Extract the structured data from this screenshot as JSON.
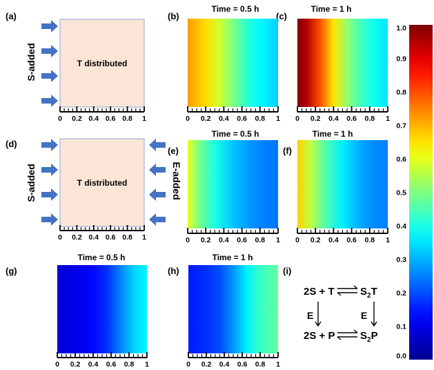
{
  "panel_labels": [
    "(a)",
    "(b)",
    "(c)",
    "(d)",
    "(e)",
    "(f)",
    "(g)",
    "(h)",
    "(i)"
  ],
  "titles": {
    "b": "Time = 0.5 h",
    "c": "Time = 1 h",
    "e": "Time = 0.5 h",
    "f": "Time = 1 h",
    "g": "Time = 0.5 h",
    "h": "Time = 1 h"
  },
  "box_text": "T distributed",
  "side_labels": {
    "s_added": "S-added",
    "e_added": "E-added"
  },
  "x_ticks": [
    "0",
    "0.2",
    "0.4",
    "0.6",
    "0.8",
    "1"
  ],
  "colorbar": {
    "ticks": [
      "0.0",
      "0.1",
      "0.2",
      "0.3",
      "0.4",
      "0.5",
      "0.6",
      "0.7",
      "0.8",
      "0.9",
      "1.0"
    ],
    "colormap": "jet",
    "range": [
      0,
      1
    ]
  },
  "scheme": {
    "top_left": "2S + T",
    "top_right": "S",
    "top_right_sub": "2",
    "top_right_end": "T",
    "bottom_left": "2S + P",
    "bottom_right": "S",
    "bottom_right_sub": "2",
    "bottom_right_end": "P",
    "enzyme": "E"
  },
  "colors": {
    "box_fill": "#fbe5d6",
    "box_stroke": "#8fa8d8",
    "arrow": "#4472c4"
  },
  "profiles": {
    "b": [
      [
        0,
        0.72
      ],
      [
        0.2,
        0.66
      ],
      [
        0.35,
        0.58
      ],
      [
        0.5,
        0.5
      ],
      [
        0.65,
        0.42
      ],
      [
        0.8,
        0.37
      ],
      [
        1,
        0.33
      ]
    ],
    "c": [
      [
        0,
        1.0
      ],
      [
        0.1,
        0.95
      ],
      [
        0.25,
        0.8
      ],
      [
        0.4,
        0.65
      ],
      [
        0.55,
        0.52
      ],
      [
        0.7,
        0.44
      ],
      [
        0.85,
        0.39
      ],
      [
        1,
        0.35
      ]
    ],
    "e": [
      [
        0,
        0.6
      ],
      [
        0.15,
        0.48
      ],
      [
        0.3,
        0.4
      ],
      [
        0.5,
        0.32
      ],
      [
        0.7,
        0.27
      ],
      [
        0.85,
        0.25
      ],
      [
        1,
        0.24
      ]
    ],
    "f": [
      [
        0,
        0.67
      ],
      [
        0.15,
        0.56
      ],
      [
        0.3,
        0.46
      ],
      [
        0.5,
        0.36
      ],
      [
        0.7,
        0.29
      ],
      [
        0.85,
        0.26
      ],
      [
        1,
        0.25
      ]
    ],
    "g": [
      [
        0,
        0.08
      ],
      [
        0.2,
        0.1
      ],
      [
        0.4,
        0.13
      ],
      [
        0.55,
        0.17
      ],
      [
        0.7,
        0.25
      ],
      [
        0.85,
        0.33
      ],
      [
        1,
        0.37
      ]
    ],
    "h": [
      [
        0,
        0.15
      ],
      [
        0.2,
        0.17
      ],
      [
        0.35,
        0.2
      ],
      [
        0.5,
        0.27
      ],
      [
        0.65,
        0.36
      ],
      [
        0.8,
        0.43
      ],
      [
        1,
        0.47
      ]
    ]
  }
}
